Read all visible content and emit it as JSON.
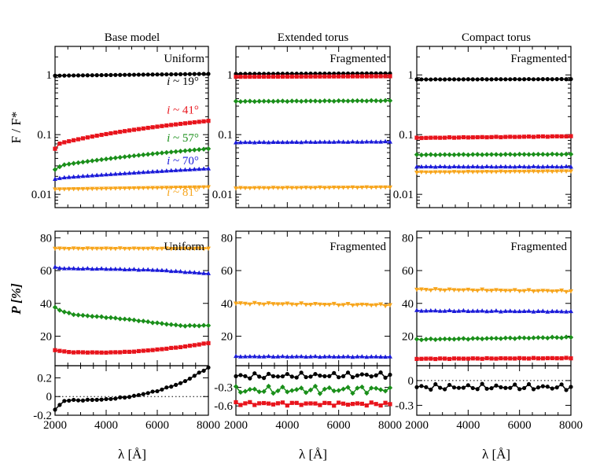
{
  "colors": {
    "black": "#000000",
    "red": "#e8141c",
    "green": "#1a8f1a",
    "blue": "#1b1bd9",
    "orange": "#f7a51c"
  },
  "common": {
    "xlabel": "λ [Å]",
    "ylabel_flux": "F / F*",
    "ylabel_pol": "P [%]",
    "xticks": [
      "2000",
      "4000",
      "6000",
      "8000"
    ]
  },
  "chart_data": [
    {
      "panel": "flux-base",
      "type": "line",
      "column_title": "Base model",
      "label": "Uniform",
      "yscale": "log",
      "ylim": [
        0.006,
        3.0
      ],
      "xlim": [
        2000,
        8000
      ],
      "yticks": [
        {
          "v": 0.01,
          "t": "0.01"
        },
        {
          "v": 0.1,
          "t": "0.1"
        },
        {
          "v": 1,
          "t": "1"
        }
      ],
      "series": [
        {
          "name": "i ~ 19°",
          "color": "black",
          "marker": "circle",
          "x": [
            2000,
            8000
          ],
          "y": [
            0.97,
            1.04
          ],
          "wiggle": 0
        },
        {
          "name": "i ~ 41°",
          "color": "red",
          "marker": "square",
          "x": [
            2000,
            2200,
            2400,
            8000
          ],
          "y": [
            0.058,
            0.072,
            0.075,
            0.17
          ],
          "wiggle": 0
        },
        {
          "name": "i ~ 57°",
          "color": "green",
          "marker": "diamond",
          "x": [
            2000,
            2300,
            8000
          ],
          "y": [
            0.026,
            0.031,
            0.058
          ],
          "wiggle": 0
        },
        {
          "name": "i ~ 70°",
          "color": "blue",
          "marker": "triangle-up",
          "x": [
            2000,
            2300,
            8000
          ],
          "y": [
            0.018,
            0.019,
            0.027
          ],
          "wiggle": 0
        },
        {
          "name": "i ~ 81°",
          "color": "orange",
          "marker": "triangle-down",
          "x": [
            2000,
            8000
          ],
          "y": [
            0.0122,
            0.0133
          ],
          "wiggle": 0
        }
      ],
      "annotations": [
        {
          "text": "i ~ 19°",
          "color": "black",
          "x": 7000,
          "y": 0.68
        },
        {
          "text": "i ~ 41°",
          "color": "red",
          "x": 7000,
          "y": 0.225
        },
        {
          "text": "i ~ 57°",
          "color": "green",
          "x": 7000,
          "y": 0.076
        },
        {
          "text": "i ~ 70°",
          "color": "blue",
          "x": 7000,
          "y": 0.032
        },
        {
          "text": "i ~ 81°",
          "color": "orange",
          "x": 7000,
          "y": 0.0095
        }
      ]
    },
    {
      "panel": "flux-ext",
      "type": "line",
      "column_title": "Extended torus",
      "label": "Fragmented",
      "yscale": "log",
      "ylim": [
        0.006,
        3.0
      ],
      "xlim": [
        2000,
        8000
      ],
      "yticks": [
        {
          "v": 0.01,
          "t": "0.01"
        },
        {
          "v": 0.1,
          "t": "0.1"
        },
        {
          "v": 1,
          "t": "1"
        }
      ],
      "series": [
        {
          "name": "black",
          "color": "black",
          "marker": "circle",
          "x": [
            2000,
            8000
          ],
          "y": [
            1.04,
            1.06
          ],
          "wiggle": 0
        },
        {
          "name": "red",
          "color": "red",
          "marker": "square",
          "x": [
            2000,
            8000
          ],
          "y": [
            0.93,
            0.95
          ],
          "wiggle": 0
        },
        {
          "name": "green",
          "color": "green",
          "marker": "diamond",
          "x": [
            2000,
            8000
          ],
          "y": [
            0.36,
            0.37
          ],
          "wiggle": 0.01
        },
        {
          "name": "blue",
          "color": "blue",
          "marker": "triangle-up",
          "x": [
            2000,
            8000
          ],
          "y": [
            0.074,
            0.076
          ],
          "wiggle": 0.01
        },
        {
          "name": "orange",
          "color": "orange",
          "marker": "triangle-down",
          "x": [
            2000,
            8000
          ],
          "y": [
            0.0128,
            0.0132
          ],
          "wiggle": 0.01
        }
      ],
      "annotations": []
    },
    {
      "panel": "flux-compact",
      "type": "line",
      "column_title": "Compact torus",
      "label": "Fragmented",
      "yscale": "log",
      "ylim": [
        0.006,
        3.0
      ],
      "xlim": [
        2000,
        8000
      ],
      "yticks": [
        {
          "v": 0.01,
          "t": "0.01"
        },
        {
          "v": 0.1,
          "t": "0.1"
        },
        {
          "v": 1,
          "t": "1"
        }
      ],
      "series": [
        {
          "name": "black",
          "color": "black",
          "marker": "circle",
          "x": [
            2000,
            8000
          ],
          "y": [
            0.84,
            0.85
          ],
          "wiggle": 0.005
        },
        {
          "name": "red",
          "color": "red",
          "marker": "square",
          "x": [
            2000,
            8000
          ],
          "y": [
            0.088,
            0.094
          ],
          "wiggle": 0.01
        },
        {
          "name": "green",
          "color": "green",
          "marker": "diamond",
          "x": [
            2000,
            8000
          ],
          "y": [
            0.046,
            0.047
          ],
          "wiggle": 0.01
        },
        {
          "name": "blue",
          "color": "blue",
          "marker": "triangle-up",
          "x": [
            2000,
            8000
          ],
          "y": [
            0.029,
            0.029
          ],
          "wiggle": 0.01
        },
        {
          "name": "orange",
          "color": "orange",
          "marker": "triangle-down",
          "x": [
            2000,
            8000
          ],
          "y": [
            0.0235,
            0.0245
          ],
          "wiggle": 0.01
        }
      ],
      "annotations": []
    },
    {
      "panel": "pol-base",
      "type": "line",
      "label": "Uniform",
      "yscale": "linear",
      "ylim": [
        2,
        84
      ],
      "xlim": [
        2000,
        8000
      ],
      "yticks": [
        {
          "v": 20,
          "t": "20"
        },
        {
          "v": 40,
          "t": "40"
        },
        {
          "v": 60,
          "t": "60"
        },
        {
          "v": 80,
          "t": "80"
        }
      ],
      "series": [
        {
          "name": "orange",
          "color": "orange",
          "marker": "triangle-down",
          "x": [
            2000,
            8000
          ],
          "y": [
            73.5,
            73.5
          ],
          "wiggle": 0.2
        },
        {
          "name": "blue",
          "color": "blue",
          "marker": "triangle-up",
          "x": [
            2000,
            2300,
            4000,
            6000,
            8000
          ],
          "y": [
            62,
            61.3,
            61,
            60.3,
            58.2
          ],
          "wiggle": 0.2
        },
        {
          "name": "green",
          "color": "green",
          "marker": "diamond",
          "x": [
            2000,
            2300,
            2800,
            4000,
            5000,
            6000,
            7000,
            8000
          ],
          "y": [
            37.5,
            35,
            33,
            31.5,
            30,
            28,
            26.3,
            26.5
          ],
          "wiggle": 0.2
        },
        {
          "name": "red",
          "color": "red",
          "marker": "square",
          "x": [
            2000,
            2200,
            2600,
            4000,
            5000,
            6000,
            7000,
            8000
          ],
          "y": [
            11.5,
            11,
            10.2,
            10,
            10.5,
            11.8,
            13.5,
            15.8
          ],
          "wiggle": 0.1
        }
      ],
      "annotations": []
    },
    {
      "panel": "pol-ext",
      "type": "line",
      "label": "Fragmented",
      "yscale": "linear",
      "ylim": [
        2,
        84
      ],
      "xlim": [
        2000,
        8000
      ],
      "yticks": [
        {
          "v": 20,
          "t": "20"
        },
        {
          "v": 40,
          "t": "40"
        },
        {
          "v": 60,
          "t": "60"
        },
        {
          "v": 80,
          "t": "80"
        }
      ],
      "series": [
        {
          "name": "orange",
          "color": "orange",
          "marker": "triangle-down",
          "x": [
            2000,
            8000
          ],
          "y": [
            40,
            39
          ],
          "wiggle": 0.6
        },
        {
          "name": "blue",
          "color": "blue",
          "marker": "triangle-up",
          "x": [
            2000,
            8000
          ],
          "y": [
            7.6,
            7.4
          ],
          "wiggle": 0.2
        }
      ],
      "annotations": []
    },
    {
      "panel": "pol-compact",
      "type": "line",
      "label": "Fragmented",
      "yscale": "linear",
      "ylim": [
        2,
        84
      ],
      "xlim": [
        2000,
        8000
      ],
      "yticks": [
        {
          "v": 20,
          "t": "20"
        },
        {
          "v": 40,
          "t": "40"
        },
        {
          "v": 60,
          "t": "60"
        },
        {
          "v": 80,
          "t": "80"
        }
      ],
      "series": [
        {
          "name": "orange",
          "color": "orange",
          "marker": "triangle-down",
          "x": [
            2000,
            8000
          ],
          "y": [
            48.5,
            47.5
          ],
          "wiggle": 0.5
        },
        {
          "name": "blue",
          "color": "blue",
          "marker": "triangle-up",
          "x": [
            2000,
            8000
          ],
          "y": [
            35.5,
            35
          ],
          "wiggle": 0.3
        },
        {
          "name": "green",
          "color": "green",
          "marker": "diamond",
          "x": [
            2000,
            8000
          ],
          "y": [
            18,
            19.3
          ],
          "wiggle": 0.3
        },
        {
          "name": "red",
          "color": "red",
          "marker": "square",
          "x": [
            2000,
            8000
          ],
          "y": [
            6.2,
            6.6
          ],
          "wiggle": 0.2
        }
      ],
      "annotations": []
    },
    {
      "panel": "res-base",
      "type": "line",
      "yscale": "linear",
      "ylim": [
        -0.2,
        0.33
      ],
      "xlim": [
        2000,
        8000
      ],
      "zero_line": true,
      "yticks": [
        {
          "v": -0.2,
          "t": "-0.2"
        },
        {
          "v": 0,
          "t": "0"
        },
        {
          "v": 0.2,
          "t": "0.2"
        }
      ],
      "series": [
        {
          "name": "black",
          "color": "black",
          "marker": "circle",
          "x": [
            2000,
            2100,
            2300,
            2500,
            3000,
            4000,
            5000,
            6000,
            7000,
            8000
          ],
          "y": [
            -0.14,
            -0.12,
            -0.05,
            -0.04,
            -0.04,
            -0.03,
            0,
            0.06,
            0.15,
            0.31
          ],
          "wiggle": 0.005
        }
      ],
      "annotations": []
    },
    {
      "panel": "res-ext",
      "type": "line",
      "yscale": "linear",
      "ylim": [
        -0.75,
        0.05
      ],
      "xlim": [
        2000,
        8000
      ],
      "yticks": [
        {
          "v": -0.3,
          "t": "-0.3"
        },
        {
          "v": -0.6,
          "t": "-0.6"
        }
      ],
      "series": [
        {
          "name": "black",
          "color": "black",
          "marker": "circle",
          "x": [
            2000,
            8000
          ],
          "y": [
            -0.12,
            -0.1
          ],
          "wiggle": 0.05
        },
        {
          "name": "green",
          "color": "green",
          "marker": "diamond",
          "x": [
            2000,
            8000
          ],
          "y": [
            -0.35,
            -0.33
          ],
          "wiggle": 0.07
        },
        {
          "name": "red",
          "color": "red",
          "marker": "square",
          "x": [
            2000,
            8000
          ],
          "y": [
            -0.56,
            -0.57
          ],
          "wiggle": 0.03
        }
      ],
      "annotations": []
    },
    {
      "panel": "res-compact",
      "type": "line",
      "yscale": "linear",
      "ylim": [
        -0.42,
        0.18
      ],
      "xlim": [
        2000,
        8000
      ],
      "zero_line": true,
      "yticks": [
        {
          "v": 0,
          "t": "0"
        },
        {
          "v": -0.3,
          "t": "-0.3"
        }
      ],
      "series": [
        {
          "name": "black",
          "color": "black",
          "marker": "circle",
          "x": [
            2000,
            8000
          ],
          "y": [
            -0.08,
            -0.08
          ],
          "wiggle": 0.04
        }
      ],
      "annotations": []
    }
  ]
}
